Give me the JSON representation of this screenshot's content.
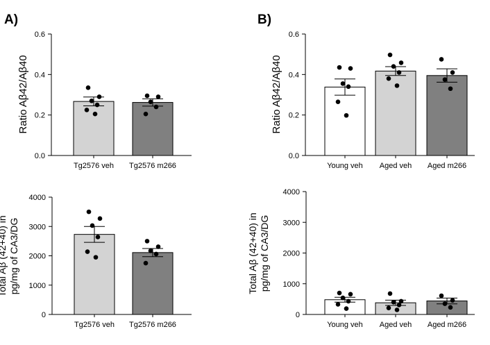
{
  "panels": {
    "A": "A)",
    "B": "B)"
  },
  "chart_data": [
    {
      "id": "a-top",
      "type": "bar",
      "ylabel": "Ratio Aβ42/Aβ40",
      "ylim": [
        0,
        0.6
      ],
      "yticks": [
        "0.0",
        "0.2",
        "0.4",
        "0.6"
      ],
      "categories": [
        "Tg2576 veh",
        "Tg2576 m266"
      ],
      "values": [
        0.267,
        0.262
      ],
      "errors": [
        0.022,
        0.018
      ],
      "bar_colors": [
        "#d3d3d3",
        "#808080"
      ],
      "points": [
        [
          0.335,
          0.29,
          0.27,
          0.25,
          0.225,
          0.205
        ],
        [
          0.295,
          0.29,
          0.265,
          0.24,
          0.205
        ]
      ]
    },
    {
      "id": "b-top",
      "type": "bar",
      "ylabel": "Ratio Aβ42/Aβ40",
      "ylim": [
        0,
        0.6
      ],
      "yticks": [
        "0.0",
        "0.2",
        "0.4",
        "0.6"
      ],
      "categories": [
        "Young veh",
        "Aged veh",
        "Aged m266"
      ],
      "values": [
        0.338,
        0.417,
        0.395
      ],
      "errors": [
        0.04,
        0.022,
        0.033
      ],
      "bar_colors": [
        "#ffffff",
        "#d3d3d3",
        "#808080"
      ],
      "points": [
        [
          0.435,
          0.43,
          0.355,
          0.34,
          0.265,
          0.198
        ],
        [
          0.497,
          0.458,
          0.44,
          0.41,
          0.38,
          0.345
        ],
        [
          0.475,
          0.41,
          0.375,
          0.33
        ]
      ]
    },
    {
      "id": "a-bottom",
      "type": "bar",
      "ylabel_lines": [
        "Total Aβ (42+40) in",
        "pg/mg of CA3/DG"
      ],
      "ylim": [
        0,
        4000
      ],
      "yticks": [
        "0",
        "1000",
        "2000",
        "3000",
        "4000"
      ],
      "categories": [
        "Tg2576 veh",
        "Tg2576 m266"
      ],
      "values": [
        2730,
        2110
      ],
      "errors": [
        270,
        140
      ],
      "bar_colors": [
        "#d3d3d3",
        "#808080"
      ],
      "points": [
        [
          3500,
          3270,
          3030,
          2640,
          2140,
          1950
        ],
        [
          2500,
          2310,
          2170,
          2060,
          1750
        ]
      ]
    },
    {
      "id": "b-bottom",
      "type": "bar",
      "ylabel_lines": [
        "Total Aβ (42+40) in",
        "pg/mg of CA3/DG"
      ],
      "ylim": [
        0,
        4000
      ],
      "yticks": [
        "0",
        "1000",
        "2000",
        "3000",
        "4000"
      ],
      "categories": [
        "Young veh",
        "Aged veh",
        "Aged m266"
      ],
      "values": [
        480,
        380,
        440
      ],
      "errors": [
        80,
        85,
        95
      ],
      "bar_colors": [
        "#ffffff",
        "#d3d3d3",
        "#808080"
      ],
      "points": [
        [
          700,
          660,
          540,
          430,
          330,
          190
        ],
        [
          680,
          430,
          400,
          310,
          210,
          150
        ],
        [
          610,
          460,
          350,
          230
        ]
      ]
    }
  ]
}
